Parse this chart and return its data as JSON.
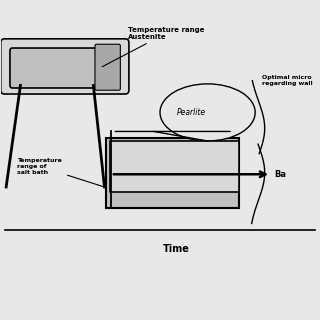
{
  "bg_color": "#e8e8e8",
  "time_label": "Time",
  "temp_austenite_label": "Temperature range\nAustenite",
  "temp_saltbath_label": "Temperature\nrange of\nsalt bath",
  "pearlite_label": "Pearlite",
  "optimal_label": "Optimal micro\nregarding wall",
  "bainite_label": "Ba",
  "line_color": "#000000",
  "rect_fill_light": "#d8d8d8",
  "rect_fill_mid": "#c0c0c0",
  "rect_fill_dark": "#a8a8a8",
  "rect_edge": "#000000"
}
